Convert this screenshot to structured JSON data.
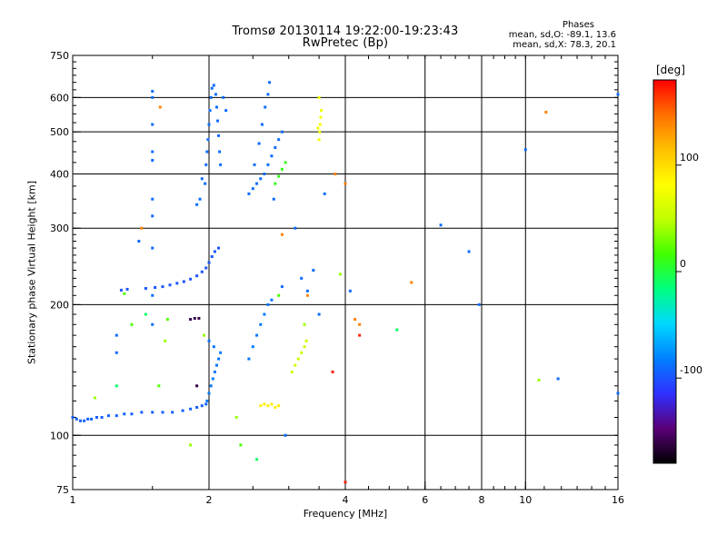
{
  "title": "Tromsø 20130114 19:22:00-19:23:43",
  "subtitle": "RwPretec (Bp)",
  "phase_info": {
    "heading": "Phases",
    "line_o": "mean, sd,O: -89.1, 13.6",
    "line_x": "mean, sd,X: 78.3, 20.1"
  },
  "colorbar": {
    "label": "[deg]",
    "ticks": [
      "100",
      "0",
      "-100"
    ],
    "tick_values": [
      100,
      0,
      -100
    ],
    "range": [
      -180,
      180
    ],
    "colors": [
      "#000000",
      "#5a0078",
      "#3030ff",
      "#0080ff",
      "#00d8ff",
      "#00ff80",
      "#40ff00",
      "#c0ff00",
      "#ffff00",
      "#ffc000",
      "#ff7000",
      "#ff0000"
    ]
  },
  "chart_data": {
    "type": "scatter",
    "title": "Tromsø 20130114 19:22:00-19:23:43",
    "subtitle": "RwPretec (Bp)",
    "xlabel": "Frequency [MHz]",
    "ylabel": "Stationary phase Virtual Height [km]",
    "x_scale": "log",
    "y_scale": "log",
    "xlim": [
      1,
      16
    ],
    "ylim": [
      75,
      750
    ],
    "x_ticks": [
      1,
      2,
      4,
      6,
      8,
      10,
      16
    ],
    "x_tick_labels": [
      "1",
      "2",
      "4",
      "6",
      "8",
      "10",
      "16"
    ],
    "y_ticks": [
      75,
      100,
      200,
      300,
      400,
      500,
      600,
      750
    ],
    "y_tick_labels": [
      "75",
      "100",
      "200",
      "300",
      "400",
      "500",
      "600",
      "750"
    ],
    "grid": true,
    "gridlines_x": [
      2,
      4,
      6,
      8,
      10
    ],
    "gridlines_y": [
      100,
      200,
      300,
      400,
      500,
      600
    ],
    "series": [
      {
        "phase": -95,
        "points": [
          [
            1.0,
            110
          ],
          [
            1.02,
            109
          ],
          [
            1.04,
            108
          ],
          [
            1.06,
            108
          ],
          [
            1.08,
            109
          ],
          [
            1.1,
            109
          ],
          [
            1.13,
            110
          ],
          [
            1.16,
            110
          ],
          [
            1.2,
            111
          ],
          [
            1.25,
            111
          ],
          [
            1.3,
            112
          ],
          [
            1.35,
            112
          ],
          [
            1.42,
            113
          ],
          [
            1.5,
            113
          ],
          [
            1.58,
            113
          ],
          [
            1.66,
            113
          ],
          [
            1.75,
            114
          ],
          [
            1.82,
            115
          ],
          [
            1.88,
            116
          ],
          [
            1.93,
            117
          ],
          [
            1.97,
            118
          ]
        ]
      },
      {
        "phase": -100,
        "points": [
          [
            1.28,
            216
          ],
          [
            1.32,
            217
          ],
          [
            1.45,
            218
          ],
          [
            1.52,
            219
          ],
          [
            1.58,
            220
          ],
          [
            1.64,
            222
          ],
          [
            1.7,
            224
          ],
          [
            1.76,
            226
          ],
          [
            1.82,
            229
          ],
          [
            1.88,
            233
          ],
          [
            1.93,
            238
          ],
          [
            1.97,
            243
          ],
          [
            2.0,
            250
          ],
          [
            2.03,
            258
          ],
          [
            2.06,
            265
          ],
          [
            2.1,
            270
          ]
        ]
      },
      {
        "phase": -90,
        "points": [
          [
            1.96,
            380
          ],
          [
            1.97,
            420
          ],
          [
            1.98,
            450
          ],
          [
            1.99,
            480
          ],
          [
            2.0,
            520
          ],
          [
            2.01,
            560
          ],
          [
            2.02,
            600
          ],
          [
            2.03,
            630
          ],
          [
            2.05,
            640
          ],
          [
            2.07,
            610
          ],
          [
            2.08,
            570
          ],
          [
            2.09,
            530
          ],
          [
            2.1,
            490
          ],
          [
            2.11,
            450
          ],
          [
            2.12,
            420
          ],
          [
            1.93,
            390
          ],
          [
            1.91,
            350
          ],
          [
            1.88,
            340
          ],
          [
            2.15,
            600
          ],
          [
            2.18,
            560
          ]
        ]
      },
      {
        "phase": -90,
        "points": [
          [
            2.45,
            360
          ],
          [
            2.5,
            370
          ],
          [
            2.55,
            380
          ],
          [
            2.6,
            390
          ],
          [
            2.65,
            400
          ],
          [
            2.7,
            420
          ],
          [
            2.75,
            440
          ],
          [
            2.8,
            460
          ],
          [
            2.85,
            480
          ],
          [
            2.9,
            500
          ],
          [
            2.52,
            420
          ],
          [
            2.58,
            470
          ],
          [
            2.62,
            520
          ],
          [
            2.66,
            570
          ],
          [
            2.7,
            610
          ],
          [
            2.72,
            650
          ],
          [
            2.78,
            350
          ]
        ]
      },
      {
        "phase": -85,
        "points": [
          [
            1.98,
            120
          ],
          [
            2.0,
            125
          ],
          [
            2.02,
            130
          ],
          [
            2.04,
            135
          ],
          [
            2.06,
            140
          ],
          [
            2.08,
            145
          ],
          [
            2.1,
            150
          ],
          [
            2.12,
            155
          ],
          [
            2.05,
            160
          ],
          [
            2.0,
            165
          ],
          [
            2.45,
            150
          ],
          [
            2.5,
            160
          ],
          [
            2.55,
            170
          ],
          [
            2.6,
            180
          ],
          [
            2.65,
            190
          ],
          [
            2.7,
            200
          ],
          [
            2.75,
            205
          ]
        ]
      },
      {
        "phase": 75,
        "points": [
          [
            3.5,
            480
          ],
          [
            3.51,
            500
          ],
          [
            3.52,
            520
          ],
          [
            3.53,
            540
          ],
          [
            3.54,
            560
          ],
          [
            3.5,
            600
          ],
          [
            3.48,
            510
          ]
        ]
      },
      {
        "phase": 90,
        "points": [
          [
            2.6,
            117
          ],
          [
            2.65,
            118
          ],
          [
            2.7,
            117
          ],
          [
            2.75,
            118
          ],
          [
            2.8,
            116
          ],
          [
            2.85,
            117
          ]
        ]
      },
      {
        "phase": 55,
        "points": [
          [
            3.05,
            140
          ],
          [
            3.1,
            145
          ],
          [
            3.15,
            150
          ],
          [
            3.2,
            155
          ],
          [
            3.25,
            160
          ],
          [
            3.28,
            165
          ]
        ]
      },
      {
        "phase": 10,
        "points": [
          [
            2.8,
            380
          ],
          [
            2.85,
            395
          ],
          [
            2.9,
            410
          ],
          [
            2.95,
            425
          ]
        ]
      },
      {
        "phase": -160,
        "points": [
          [
            1.82,
            185
          ],
          [
            1.86,
            186
          ],
          [
            1.9,
            186
          ],
          [
            1.88,
            130
          ]
        ]
      },
      {
        "phase": -90,
        "points": [
          [
            1.5,
            620
          ],
          [
            1.5,
            600
          ],
          [
            1.5,
            520
          ],
          [
            1.5,
            450
          ],
          [
            1.5,
            430
          ],
          [
            1.5,
            350
          ],
          [
            1.5,
            320
          ],
          [
            1.5,
            270
          ],
          [
            1.4,
            280
          ],
          [
            1.25,
            170
          ],
          [
            1.25,
            155
          ],
          [
            1.5,
            210
          ],
          [
            1.5,
            180
          ],
          [
            3.2,
            230
          ],
          [
            3.3,
            215
          ],
          [
            3.4,
            240
          ],
          [
            3.5,
            190
          ],
          [
            4.1,
            215
          ],
          [
            6.5,
            305
          ],
          [
            7.5,
            265
          ],
          [
            7.9,
            200
          ],
          [
            10.0,
            455
          ],
          [
            11.8,
            135
          ],
          [
            16.0,
            610
          ],
          [
            16.0,
            125
          ],
          [
            2.95,
            100
          ],
          [
            3.1,
            300
          ],
          [
            3.6,
            360
          ],
          [
            2.9,
            220
          ]
        ]
      },
      {
        "phase": 140,
        "points": [
          [
            1.56,
            570
          ],
          [
            3.8,
            400
          ],
          [
            4.0,
            380
          ],
          [
            4.2,
            185
          ],
          [
            4.3,
            180
          ],
          [
            5.6,
            225
          ],
          [
            11.1,
            555
          ],
          [
            16.1,
            485
          ],
          [
            1.42,
            300
          ],
          [
            2.9,
            290
          ],
          [
            3.3,
            210
          ]
        ]
      },
      {
        "phase": 40,
        "points": [
          [
            1.12,
            122
          ],
          [
            1.6,
            165
          ],
          [
            1.82,
            95
          ],
          [
            3.9,
            235
          ],
          [
            10.7,
            134
          ],
          [
            1.95,
            170
          ],
          [
            2.3,
            110
          ],
          [
            3.25,
            180
          ]
        ]
      },
      {
        "phase": 20,
        "points": [
          [
            1.3,
            212
          ],
          [
            1.35,
            180
          ],
          [
            1.62,
            185
          ],
          [
            2.85,
            210
          ],
          [
            2.35,
            95
          ],
          [
            1.55,
            130
          ]
        ]
      },
      {
        "phase": -10,
        "points": [
          [
            2.55,
            88
          ],
          [
            1.25,
            130
          ],
          [
            5.2,
            175
          ],
          [
            1.45,
            190
          ]
        ]
      },
      {
        "phase": 170,
        "points": [
          [
            4.0,
            78
          ],
          [
            3.75,
            140
          ],
          [
            4.3,
            170
          ]
        ]
      }
    ]
  }
}
